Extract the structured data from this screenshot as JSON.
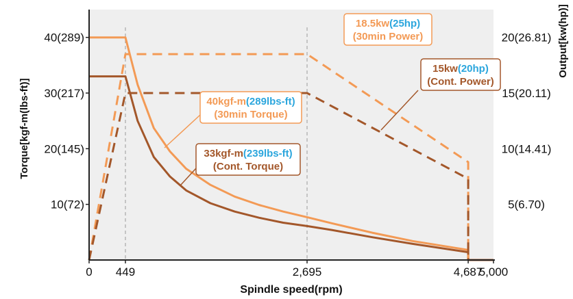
{
  "chart_data": {
    "type": "line",
    "xlabel": "Spindle speed(rpm)",
    "ylabel_left": "Torque[kgf-m(lbs-ft)]",
    "ylabel_right": "Output[kw(hp)]",
    "xlim": [
      0,
      5000
    ],
    "x_ticks": [
      {
        "value": 0,
        "label": "0"
      },
      {
        "value": 449,
        "label": "449"
      },
      {
        "value": 2695,
        "label": "2,695"
      },
      {
        "value": 4687,
        "label": "4,687"
      },
      {
        "value": 5000,
        "label": "5,000"
      }
    ],
    "ylim_left": [
      0,
      45
    ],
    "y_left_ticks": [
      {
        "value": 10,
        "label": "10(72)"
      },
      {
        "value": 20,
        "label": "20(145)"
      },
      {
        "value": 30,
        "label": "30(217)"
      },
      {
        "value": 40,
        "label": "40(289)"
      }
    ],
    "ylim_right": [
      0,
      22.5
    ],
    "y_right_ticks": [
      {
        "value": 5,
        "label": "5(6.70)"
      },
      {
        "value": 10,
        "label": "10(14.41)"
      },
      {
        "value": 15,
        "label": "15(20.11)"
      },
      {
        "value": 20,
        "label": "20(26.81)"
      }
    ],
    "vlines": [
      449,
      2695
    ],
    "colors": {
      "plot_bg": "#efefef",
      "light_orange": "#f39a55",
      "dark_brown": "#a3572a",
      "blue": "#2ba6dd",
      "guide": "#a8a8a8",
      "axis": "#222222"
    },
    "series": [
      {
        "key": "torque_30min",
        "axis": "left",
        "style": "solid",
        "color_key": "light_orange",
        "points": [
          [
            0,
            40
          ],
          [
            449,
            40
          ],
          [
            600,
            31.5
          ],
          [
            800,
            23.7
          ],
          [
            1000,
            19.5
          ],
          [
            1200,
            16.4
          ],
          [
            1500,
            13.5
          ],
          [
            1800,
            11.4
          ],
          [
            2100,
            9.9
          ],
          [
            2400,
            8.7
          ],
          [
            2695,
            7.7
          ],
          [
            3000,
            6.6
          ],
          [
            3500,
            4.9
          ],
          [
            4000,
            3.4
          ],
          [
            4687,
            1.8
          ],
          [
            4687,
            0
          ]
        ]
      },
      {
        "key": "torque_cont",
        "axis": "left",
        "style": "solid",
        "color_key": "dark_brown",
        "points": [
          [
            0,
            33
          ],
          [
            449,
            33
          ],
          [
            600,
            25
          ],
          [
            800,
            18.5
          ],
          [
            1000,
            15
          ],
          [
            1200,
            12.5
          ],
          [
            1500,
            10.2
          ],
          [
            1800,
            8.7
          ],
          [
            2100,
            7.6
          ],
          [
            2400,
            6.7
          ],
          [
            2695,
            6.1
          ],
          [
            3000,
            5.4
          ],
          [
            3500,
            4.1
          ],
          [
            4000,
            2.9
          ],
          [
            4687,
            1.4
          ],
          [
            4687,
            0
          ],
          [
            5000,
            0
          ]
        ]
      },
      {
        "key": "power_30min",
        "axis": "right",
        "style": "dashed",
        "color_key": "light_orange",
        "points": [
          [
            0,
            0
          ],
          [
            449,
            18.5
          ],
          [
            2695,
            18.5
          ],
          [
            4687,
            8.8
          ],
          [
            4687,
            0
          ]
        ]
      },
      {
        "key": "power_cont",
        "axis": "right",
        "style": "dashed",
        "color_key": "dark_brown",
        "points": [
          [
            0,
            0
          ],
          [
            449,
            15
          ],
          [
            2695,
            15
          ],
          [
            4687,
            7.3
          ],
          [
            4687,
            0
          ]
        ]
      }
    ],
    "annotations": [
      {
        "key": "p30",
        "border_key": "light_orange",
        "line1": [
          {
            "text": "18.5kw",
            "color_key": "light_orange"
          },
          {
            "text": "(25hp)",
            "color_key": "blue"
          }
        ],
        "line2": {
          "text": "(30min Power)",
          "color_key": "light_orange"
        }
      },
      {
        "key": "pc",
        "border_key": "dark_brown",
        "line1": [
          {
            "text": "15kw",
            "color_key": "dark_brown"
          },
          {
            "text": "(20hp)",
            "color_key": "blue"
          }
        ],
        "line2": {
          "text": "(Cont. Power)",
          "color_key": "dark_brown"
        }
      },
      {
        "key": "t30",
        "border_key": "light_orange",
        "line1": [
          {
            "text": "40kgf-m",
            "color_key": "light_orange"
          },
          {
            "text": "(289lbs-ft)",
            "color_key": "blue"
          }
        ],
        "line2": {
          "text": "(30min Torque)",
          "color_key": "light_orange"
        }
      },
      {
        "key": "tc",
        "border_key": "dark_brown",
        "line1": [
          {
            "text": "33kgf-m",
            "color_key": "dark_brown"
          },
          {
            "text": "(239lbs-ft)",
            "color_key": "blue"
          }
        ],
        "line2": {
          "text": "(Cont. Torque)",
          "color_key": "dark_brown"
        }
      }
    ]
  }
}
